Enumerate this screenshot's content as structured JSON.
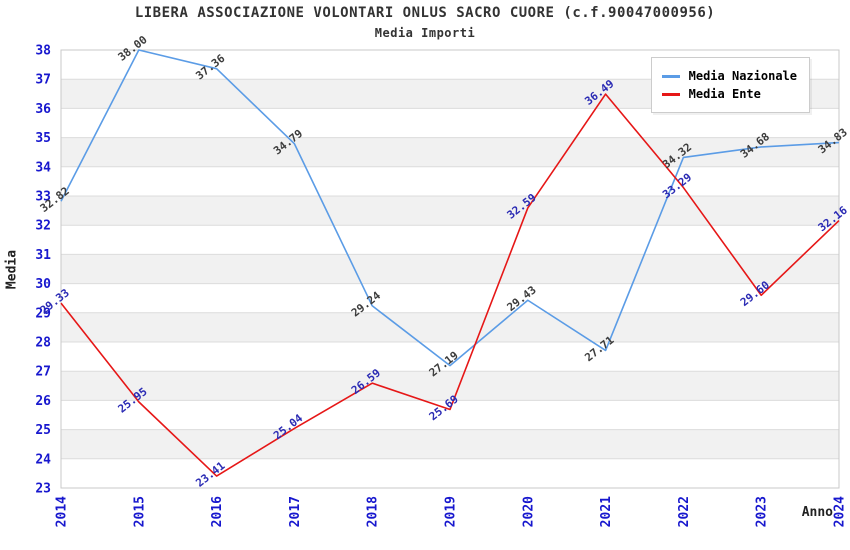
{
  "chart_data": {
    "type": "line",
    "title": "LIBERA ASSOCIAZIONE VOLONTARI ONLUS SACRO CUORE (c.f.90047000956)",
    "subtitle": "Media Importi",
    "xlabel": "Anno",
    "ylabel": "Media",
    "categories": [
      "2014",
      "2015",
      "2016",
      "2017",
      "2018",
      "2019",
      "2020",
      "2021",
      "2022",
      "2023",
      "2024"
    ],
    "ylim": [
      23,
      38
    ],
    "ytick_step": 1,
    "grid": "horizontal",
    "banded_rows": true,
    "legend_position": "top-right",
    "point_label_decimals": 2,
    "series": [
      {
        "name": "Media Nazionale",
        "color": "#5B9CE6",
        "label_color": "#3C3C3C",
        "values": [
          32.82,
          38.0,
          37.36,
          34.79,
          29.24,
          27.19,
          29.43,
          27.71,
          34.32,
          34.68,
          34.83
        ]
      },
      {
        "name": "Media Ente",
        "color": "#E61717",
        "label_color": "#2B2BB4",
        "values": [
          29.33,
          25.95,
          23.41,
          25.04,
          26.59,
          25.69,
          32.59,
          36.49,
          33.29,
          29.6,
          32.16
        ]
      }
    ],
    "colors": {
      "axis_tick_label": "#1717CE",
      "grid_line": "#DCDCDC",
      "band_fill": "#F1F1F1",
      "plot_border": "#C9C9C9",
      "title_text": "#333333"
    }
  }
}
